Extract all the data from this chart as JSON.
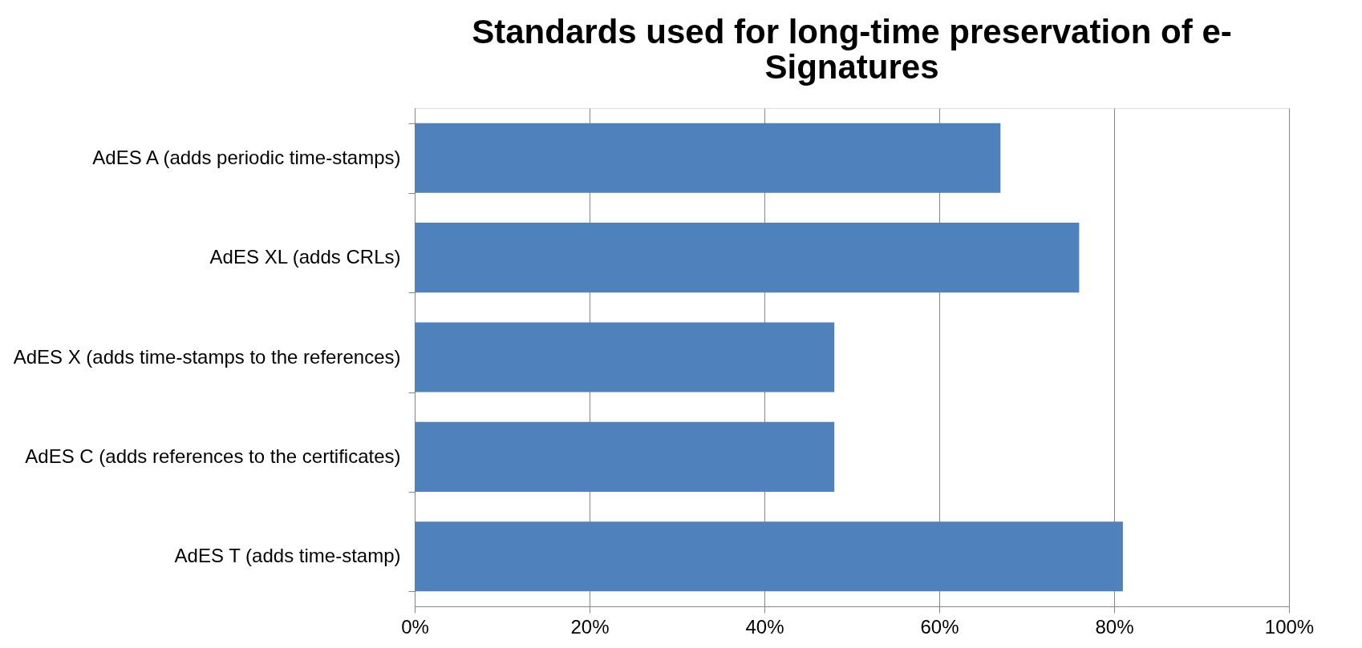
{
  "chart_data": {
    "type": "bar",
    "orientation": "horizontal",
    "title": "Standards used for long-time preservation of e-Signatures",
    "categories": [
      "AdES A (adds periodic time-stamps)",
      "AdES XL (adds CRLs)",
      "AdES X (adds time-stamps to the references)",
      "AdES C (adds references to the certificates)",
      "AdES T (adds time-stamp)"
    ],
    "values": [
      67,
      76,
      48,
      48,
      81
    ],
    "color": "#4f81bd",
    "xlim": [
      0,
      100
    ],
    "xticks": [
      {
        "value": 0,
        "label": "0%"
      },
      {
        "value": 20,
        "label": "20%"
      },
      {
        "value": 40,
        "label": "40%"
      },
      {
        "value": 60,
        "label": "60%"
      },
      {
        "value": 80,
        "label": "80%"
      },
      {
        "value": 100,
        "label": "100%"
      }
    ],
    "grid": "x"
  }
}
